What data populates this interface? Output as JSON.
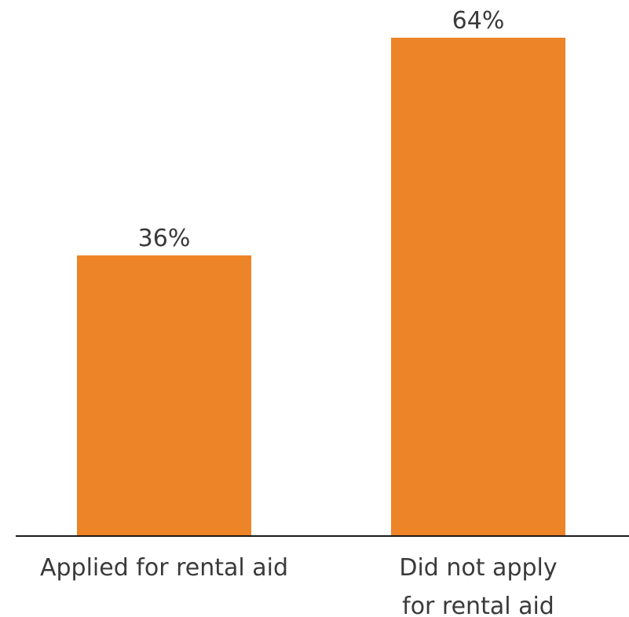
{
  "chart_data": {
    "type": "bar",
    "categories": [
      [
        "Applied for rental aid"
      ],
      [
        "Did not apply",
        "for rental aid"
      ]
    ],
    "values": [
      36,
      64
    ],
    "value_labels": [
      "36%",
      "64%"
    ],
    "ylim": [
      0,
      64
    ],
    "bar_color": "#ED8428",
    "axis_color": "#1a1a1a",
    "grid": false,
    "title": "",
    "xlabel": "",
    "ylabel": ""
  }
}
